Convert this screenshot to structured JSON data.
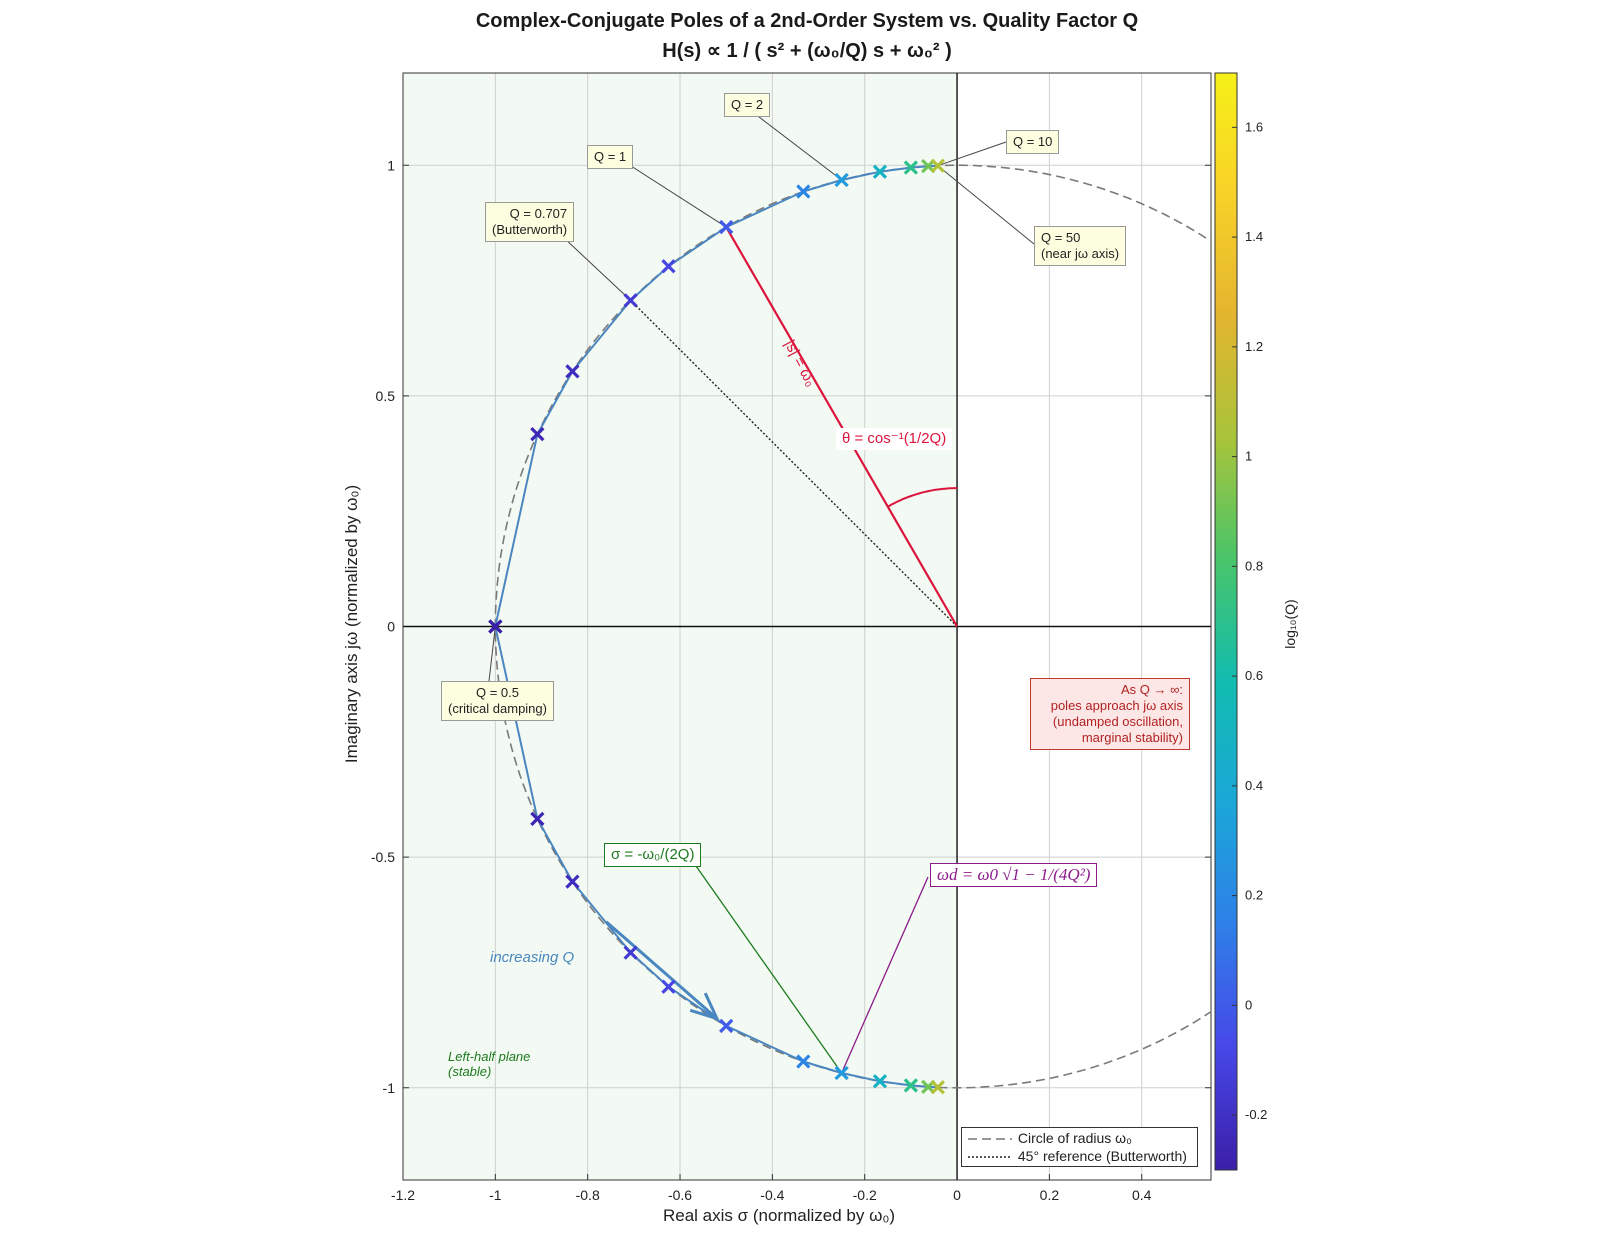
{
  "title": {
    "line1": "Complex-Conjugate  Poles  of  a  2nd-Order  System  vs.  Quality  Factor  Q",
    "line2": "H(s)  ∝  1  /  (  s²  +  (ω₀/Q)  s  +  ω₀²  )"
  },
  "axes": {
    "xlabel": "Real  axis    σ    (normalized  by  ω₀)",
    "ylabel": "Imaginary  axis    jω    (normalized  by  ω₀)"
  },
  "colorbar": {
    "label": "log₁₀(Q)",
    "range": [
      -0.3,
      1.699
    ],
    "ticks": [
      -0.2,
      0,
      0.2,
      0.4,
      0.6,
      0.8,
      1,
      1.2,
      1.4,
      1.6
    ],
    "tick_labels": [
      "-0.2",
      "0",
      "0.2",
      "0.4",
      "0.6",
      "0.8",
      "1",
      "1.2",
      "1.4",
      "1.6"
    ],
    "colormap": [
      "#3b1fa8",
      "#4747e8",
      "#2f7fe8",
      "#1ba7d8",
      "#11bcb0",
      "#48c56a",
      "#a8c43a",
      "#e3b52f",
      "#f8d128",
      "#f6f018"
    ]
  },
  "annotations": {
    "q2": "Q = 2",
    "q1": "Q = 1",
    "q10": "Q = 10",
    "q0707_line1": "Q = 0.707",
    "q0707_line2": "(Butterworth)",
    "q50_line1": "Q  =  50",
    "q50_line2": "(near  jω  axis)",
    "q05_line1": "Q = 0.5",
    "q05_line2": "(critical damping)",
    "radius": "|s|  =  ω₀",
    "theta": "θ  =  cos⁻¹(1/2Q)",
    "sigma": "σ  =  -ω₀/(2Q)",
    "omega_d": "ωd = ω0 √1 − 1/(4Q²)",
    "increasing": "increasing Q",
    "lhp_line1": "Left-half plane",
    "lhp_line2": "(stable)",
    "note_line1": "As  Q → ∞:",
    "note_line2": "poles  approach  jω  axis",
    "note_line3": "(undamped  oscillation,",
    "note_line4": "marginal  stability)"
  },
  "legend": {
    "items": [
      {
        "label": "Circle  of  radius  ω₀",
        "style": "dashed",
        "color": "#777777"
      },
      {
        "label": "45°  reference  (Butterworth)",
        "style": "dotted",
        "color": "#222222"
      }
    ]
  },
  "colors": {
    "lhp_fill": "#f3faf3",
    "pole_path": "#4a86c0",
    "radius_line": "#dc143c",
    "sigma_line": "#1e7a1e",
    "omega_d_line": "#8b1a8b",
    "note_bg": "#fde6e6",
    "note_border": "#c0392b",
    "note_text": "#b22222"
  },
  "chart_data": {
    "type": "scatter",
    "title": "Complex-Conjugate  Poles  of  a  2nd-Order  System  vs.  Quality  Factor  Q",
    "xlabel": "Real  axis    σ    (normalized  by  ω₀)",
    "ylabel": "Imaginary  axis    jω    (normalized  by  ω₀)",
    "xlim": [
      -1.2,
      0.55
    ],
    "ylim": [
      -1.2,
      1.2
    ],
    "xticks": [
      -1.2,
      -1,
      -0.8,
      -0.6,
      -0.4,
      -0.2,
      0,
      0.2,
      0.4
    ],
    "xtick_labels": [
      "-1.2",
      "-1",
      "-0.8",
      "-0.6",
      "-0.4",
      "-0.2",
      "0",
      "0.2",
      "0.4"
    ],
    "yticks": [
      -1,
      -0.5,
      0,
      0.5,
      1
    ],
    "ytick_labels": [
      "-1",
      "-0.5",
      "0",
      "0.5",
      "1"
    ],
    "grid": true,
    "legend_position": "bottom-right",
    "Q_values": [
      0.5,
      0.55,
      0.6,
      0.707,
      0.8,
      1,
      1.5,
      2,
      3,
      5,
      8,
      12
    ],
    "poles_upper": [
      {
        "x": -1.0,
        "y": 0.0
      },
      {
        "x": -0.909,
        "y": 0.417
      },
      {
        "x": -0.833,
        "y": 0.553
      },
      {
        "x": -0.707,
        "y": 0.707
      },
      {
        "x": -0.625,
        "y": 0.781
      },
      {
        "x": -0.5,
        "y": 0.866
      },
      {
        "x": -0.333,
        "y": 0.943
      },
      {
        "x": -0.25,
        "y": 0.968
      },
      {
        "x": -0.167,
        "y": 0.986
      },
      {
        "x": -0.1,
        "y": 0.995
      },
      {
        "x": -0.0625,
        "y": 0.998
      },
      {
        "x": -0.0417,
        "y": 0.999
      }
    ],
    "poles_lower": [
      {
        "x": -1.0,
        "y": 0.0
      },
      {
        "x": -0.909,
        "y": -0.417
      },
      {
        "x": -0.833,
        "y": -0.553
      },
      {
        "x": -0.707,
        "y": -0.707
      },
      {
        "x": -0.625,
        "y": -0.781
      },
      {
        "x": -0.5,
        "y": -0.866
      },
      {
        "x": -0.333,
        "y": -0.943
      },
      {
        "x": -0.25,
        "y": -0.968
      },
      {
        "x": -0.167,
        "y": -0.986
      },
      {
        "x": -0.1,
        "y": -0.995
      },
      {
        "x": -0.0625,
        "y": -0.998
      },
      {
        "x": -0.0417,
        "y": -0.999
      }
    ],
    "unit_circle_radius": 1,
    "series": [
      {
        "name": "Circle  of  radius  ω₀"
      },
      {
        "name": "45°  reference  (Butterworth)"
      }
    ]
  }
}
